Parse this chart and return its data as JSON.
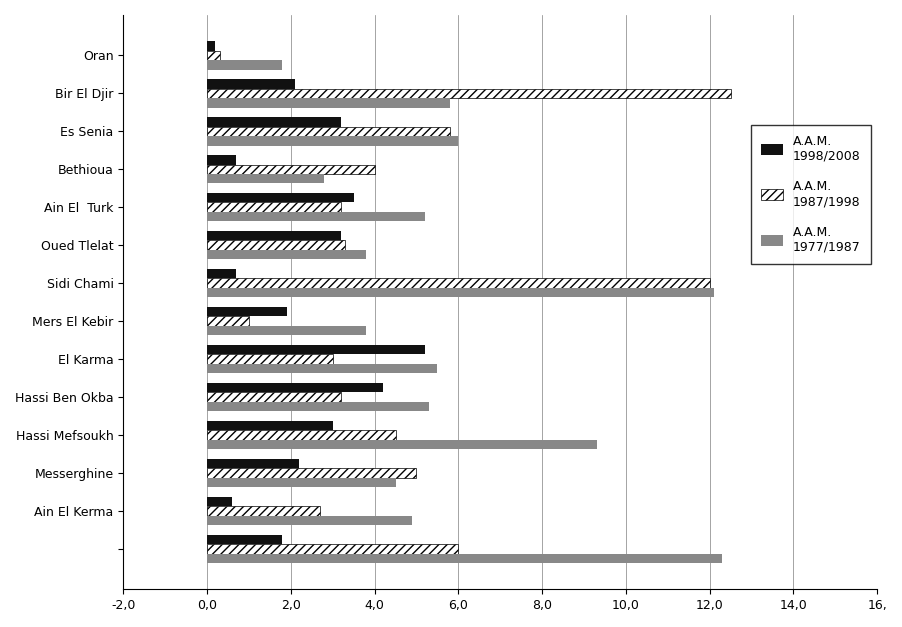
{
  "categories": [
    "",
    "Ain El Kerma",
    "Messerghine",
    "Hassi Mefsoukh",
    "Hassi Ben Okba",
    "El Karma",
    "Mers El Kebir",
    "Sidi Chami",
    "Oued Tlelat",
    "Ain El  Turk",
    "Bethioua",
    "Es Senia",
    "Bir El Djir",
    "Oran"
  ],
  "aam_1998_2008": [
    1.8,
    0.6,
    2.2,
    3.0,
    4.2,
    5.2,
    1.9,
    0.7,
    3.2,
    3.5,
    0.7,
    3.2,
    2.1,
    0.2
  ],
  "aam_1987_1998": [
    6.0,
    2.7,
    5.0,
    4.5,
    3.2,
    3.0,
    1.0,
    12.0,
    3.3,
    3.2,
    4.0,
    5.8,
    12.5,
    0.3
  ],
  "aam_1977_1987": [
    12.3,
    4.9,
    4.5,
    9.3,
    5.3,
    5.5,
    3.8,
    12.1,
    3.8,
    5.2,
    2.8,
    6.0,
    5.8,
    1.8
  ],
  "xlim": [
    -2.0,
    16.0
  ],
  "xticks": [
    -2.0,
    0.0,
    2.0,
    4.0,
    6.0,
    8.0,
    10.0,
    12.0,
    14.0,
    16.0
  ],
  "xtick_labels": [
    "-2,0",
    "0,0",
    "2,0",
    "4,0",
    "6,0",
    "8,0",
    "10,0",
    "12,0",
    "14,0",
    "16,"
  ],
  "color_black": "#111111",
  "color_gray": "#888888",
  "hatch_pattern": "////",
  "legend_labels": [
    "A.A.M.\n1998/2008",
    "A.A.M.\n1987/1998",
    "A.A.M.\n1977/1987"
  ]
}
